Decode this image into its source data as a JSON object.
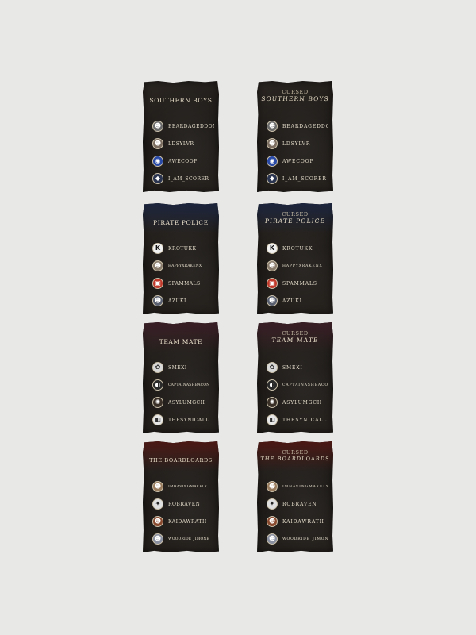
{
  "cards": [
    {
      "prefix": "",
      "title": "SOUTHERN BOYS",
      "members": [
        {
          "name": "BEARDAGEDDON",
          "icon": "avatar-icon",
          "color": "#6b6b6b"
        },
        {
          "name": "LDSYLVR",
          "icon": "avatar-icon",
          "color": "#7b6e60"
        },
        {
          "name": "AWECOOP",
          "icon": "avatar-icon",
          "color": "#2a4aa8"
        },
        {
          "name": "I_AM_SCORER",
          "icon": "avatar-icon",
          "color": "#2b3550"
        }
      ]
    },
    {
      "prefix": "CURSED",
      "title": "SOUTHERN BOYS",
      "members": [
        {
          "name": "BEARDAGEDDON",
          "icon": "avatar-icon",
          "color": "#6b6b6b"
        },
        {
          "name": "LDSYLVR",
          "icon": "avatar-icon",
          "color": "#7b6e60"
        },
        {
          "name": "AWECOOP",
          "icon": "avatar-icon",
          "color": "#2a4aa8"
        },
        {
          "name": "I_AM_SCORER",
          "icon": "avatar-icon",
          "color": "#2b3550"
        }
      ]
    },
    {
      "prefix": "",
      "title": "PIRATE POLICE",
      "members": [
        {
          "name": "KROTUKK",
          "icon": "k-logo-icon",
          "color": "#f2f2f2"
        },
        {
          "name": "HAPPYXRAKENX",
          "icon": "avatar-icon",
          "color": "#8a7d6e"
        },
        {
          "name": "SPAMMALS",
          "icon": "avatar-icon",
          "color": "#c0392b"
        },
        {
          "name": "AZUKI",
          "icon": "avatar-icon",
          "color": "#5a6070"
        }
      ]
    },
    {
      "prefix": "CURSED",
      "title": "PIRATE POLICE",
      "members": [
        {
          "name": "KROTUKK",
          "icon": "k-logo-icon",
          "color": "#f2f2f2"
        },
        {
          "name": "HAPPYXRAKENX",
          "icon": "avatar-icon",
          "color": "#8a7d6e"
        },
        {
          "name": "SPAMMALS",
          "icon": "avatar-icon",
          "color": "#c0392b"
        },
        {
          "name": "AZUKI",
          "icon": "avatar-icon",
          "color": "#5a6070"
        }
      ]
    },
    {
      "prefix": "",
      "title": "TEAM MATE",
      "members": [
        {
          "name": "SMEXI",
          "icon": "avatar-icon",
          "color": "#d8d8d8"
        },
        {
          "name": "CAPTAINASHBACON",
          "icon": "avatar-icon",
          "color": "#2a2a2a"
        },
        {
          "name": "ASYLUMGCH",
          "icon": "avatar-icon",
          "color": "#3a3028"
        },
        {
          "name": "THESYNICALL",
          "icon": "avatar-icon",
          "color": "#e8e8e8"
        }
      ]
    },
    {
      "prefix": "CURSED",
      "title": "TEAM MATE",
      "members": [
        {
          "name": "SMEXI",
          "icon": "avatar-icon",
          "color": "#d8d8d8"
        },
        {
          "name": "CAPTAINASHBACON",
          "icon": "avatar-icon",
          "color": "#2a2a2a"
        },
        {
          "name": "ASYLUMGCH",
          "icon": "avatar-icon",
          "color": "#3a3028"
        },
        {
          "name": "THESYNICALL",
          "icon": "avatar-icon",
          "color": "#e8e8e8"
        }
      ]
    },
    {
      "prefix": "",
      "title": "THE BOARDLOARDS",
      "members": [
        {
          "name": "IMHAVINGMAKELY",
          "icon": "avatar-icon",
          "color": "#9a7c5e"
        },
        {
          "name": "ROBRAVEN",
          "icon": "avatar-icon",
          "color": "#e0e0e0"
        },
        {
          "name": "KAIDAWRATH",
          "icon": "avatar-icon",
          "color": "#8a4a30"
        },
        {
          "name": "WOODRIDE_JIMONE",
          "icon": "avatar-icon",
          "color": "#8a90a0"
        }
      ]
    },
    {
      "prefix": "CURSED",
      "title": "THE BOARDLOARDS",
      "members": [
        {
          "name": "IMHAVINGMAKELY",
          "icon": "avatar-icon",
          "color": "#9a7c5e"
        },
        {
          "name": "ROBRAVEN",
          "icon": "avatar-icon",
          "color": "#e0e0e0"
        },
        {
          "name": "KAIDAWRATH",
          "icon": "avatar-icon",
          "color": "#8a4a30"
        },
        {
          "name": "WOODRIDE_JIMONE",
          "icon": "avatar-icon",
          "color": "#8a90a0"
        }
      ]
    }
  ],
  "colors": {
    "background": "#e8e8e6",
    "card": "#231f1b",
    "text": "#e4dcca"
  }
}
